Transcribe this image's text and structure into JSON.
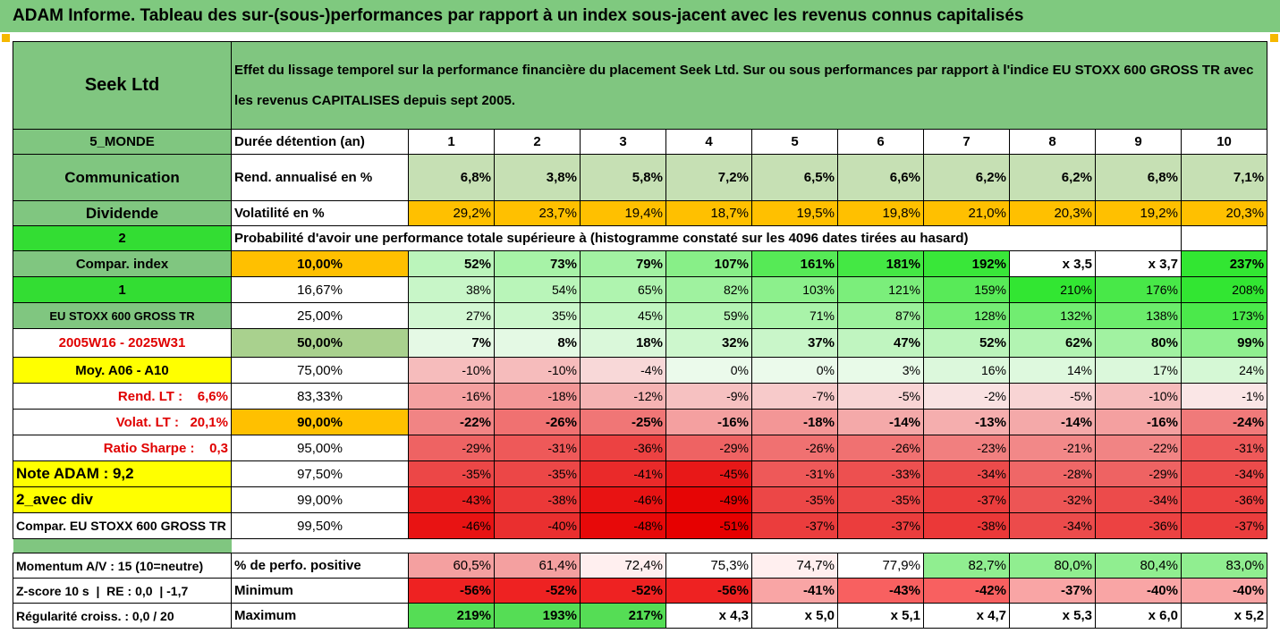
{
  "title": "ADAM Informe. Tableau des sur-(sous-)performances par rapport à un index sous-jacent avec les revenus connus capitalisés",
  "header": {
    "company": "Seek Ltd",
    "description": "Effet du lissage temporel sur la performance financière du placement Seek Ltd. Sur ou sous performances par rapport à l'indice EU STOXX 600 GROSS TR avec les revenus CAPITALISES depuis sept 2005."
  },
  "rows": {
    "duration": {
      "side": "5_MONDE",
      "label": "Durée détention (an)",
      "cols": [
        "1",
        "2",
        "3",
        "4",
        "5",
        "6",
        "7",
        "8",
        "9",
        "10"
      ]
    },
    "rendement": {
      "side": "Communication",
      "label": "Rend. annualisé en %",
      "vals": [
        "6,8%",
        "3,8%",
        "5,8%",
        "7,2%",
        "6,5%",
        "6,6%",
        "6,2%",
        "6,2%",
        "6,8%",
        "7,1%"
      ]
    },
    "volatilite": {
      "side": "Dividende",
      "label": "Volatilité en %",
      "vals": [
        "29,2%",
        "23,7%",
        "19,4%",
        "18,7%",
        "19,5%",
        "19,8%",
        "21,0%",
        "20,3%",
        "19,2%",
        "20,3%"
      ]
    },
    "proba": {
      "side": "2",
      "label": "Probabilité d'avoir une performance totale supérieure à (histogramme constaté sur les 4096 dates tirées au hasard)"
    }
  },
  "quantiles": [
    {
      "side": "Compar. index",
      "q": "10,00%",
      "vals": [
        "52%",
        "73%",
        "79%",
        "107%",
        "161%",
        "181%",
        "192%",
        "x 3,5",
        "x 3,7",
        "237%"
      ]
    },
    {
      "side": "1",
      "q": "16,67%",
      "vals": [
        "38%",
        "54%",
        "65%",
        "82%",
        "103%",
        "121%",
        "159%",
        "210%",
        "176%",
        "208%"
      ]
    },
    {
      "side": "EU STOXX 600 GROSS TR",
      "q": "25,00%",
      "vals": [
        "27%",
        "35%",
        "45%",
        "59%",
        "71%",
        "87%",
        "128%",
        "132%",
        "138%",
        "173%"
      ]
    },
    {
      "side": "2005W16 - 2025W31",
      "q": "50,00%",
      "vals": [
        "7%",
        "8%",
        "18%",
        "32%",
        "37%",
        "47%",
        "52%",
        "62%",
        "80%",
        "99%"
      ]
    },
    {
      "side": "Moy. A06 - A10",
      "q": "75,00%",
      "vals": [
        "-10%",
        "-10%",
        "-4%",
        "0%",
        "0%",
        "3%",
        "16%",
        "14%",
        "17%",
        "24%"
      ]
    },
    {
      "side": "Rend. LT :    6,6%",
      "q": "83,33%",
      "vals": [
        "-16%",
        "-18%",
        "-12%",
        "-9%",
        "-7%",
        "-5%",
        "-2%",
        "-5%",
        "-10%",
        "-1%"
      ]
    },
    {
      "side": "Volat. LT :   20,1%",
      "q": "90,00%",
      "vals": [
        "-22%",
        "-26%",
        "-25%",
        "-16%",
        "-18%",
        "-14%",
        "-13%",
        "-14%",
        "-16%",
        "-24%"
      ]
    },
    {
      "side": "Ratio Sharpe :    0,3",
      "q": "95,00%",
      "vals": [
        "-29%",
        "-31%",
        "-36%",
        "-29%",
        "-26%",
        "-26%",
        "-23%",
        "-21%",
        "-22%",
        "-31%"
      ]
    },
    {
      "side": "Note ADAM : 9,2",
      "q": "97,50%",
      "vals": [
        "-35%",
        "-35%",
        "-41%",
        "-45%",
        "-31%",
        "-33%",
        "-34%",
        "-28%",
        "-29%",
        "-34%"
      ]
    },
    {
      "side": "2_avec div",
      "q": "99,00%",
      "vals": [
        "-43%",
        "-38%",
        "-46%",
        "-49%",
        "-35%",
        "-35%",
        "-37%",
        "-32%",
        "-34%",
        "-36%"
      ]
    },
    {
      "side": "Compar. EU STOXX 600 GROSS TR",
      "q": "99,50%",
      "vals": [
        "-46%",
        "-40%",
        "-48%",
        "-51%",
        "-37%",
        "-37%",
        "-38%",
        "-34%",
        "-36%",
        "-37%"
      ]
    }
  ],
  "bottom": [
    {
      "side": "Momentum A/V : 15 (10=neutre)",
      "label": "% de perfo. positive",
      "vals": [
        "60,5%",
        "61,4%",
        "72,4%",
        "75,3%",
        "74,7%",
        "77,9%",
        "82,7%",
        "80,0%",
        "80,4%",
        "83,0%"
      ]
    },
    {
      "side": "Z-score 10 s  |  RE : 0,0  | -1,7",
      "label": "Minimum",
      "vals": [
        "-56%",
        "-52%",
        "-52%",
        "-56%",
        "-41%",
        "-43%",
        "-42%",
        "-37%",
        "-40%",
        "-40%"
      ]
    },
    {
      "side": "Régularité croiss. : 0,0 / 20",
      "label": "Maximum",
      "vals": [
        "219%",
        "193%",
        "217%",
        "x 4,3",
        "x 5,0",
        "x 5,1",
        "x 4,7",
        "x 5,3",
        "x 6,0",
        "x 5,2"
      ]
    }
  ],
  "colors": {
    "header_green": "#7fc97f",
    "light_green": "#c6e0b4",
    "bright_green": "#33dd33",
    "orange": "#ffc000",
    "yellow": "#ffff00",
    "red_text": "#e00000"
  }
}
